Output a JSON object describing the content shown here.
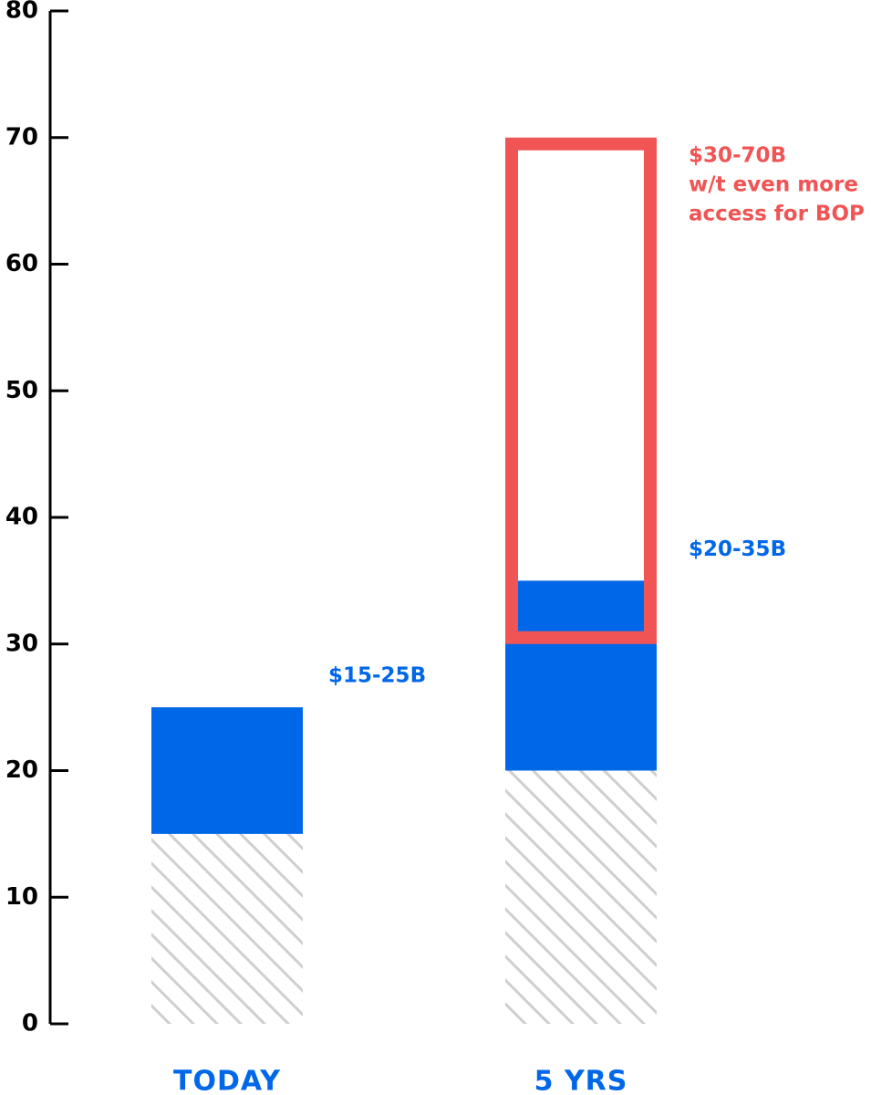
{
  "chart_data": {
    "type": "range",
    "categories": [
      "TODAY",
      "5 YRS"
    ],
    "category_color": "#0068e8",
    "base": "hatch",
    "series": [
      {
        "color": "#0068e8",
        "style": "filled",
        "low": [
          15,
          20
        ],
        "high": [
          25,
          35
        ],
        "value_labels": [
          [
            "$15-25B"
          ],
          [
            "$20-35B"
          ]
        ]
      },
      {
        "color": "#f05454",
        "style": "outline",
        "low": [
          null,
          30
        ],
        "high": [
          null,
          70
        ],
        "value_labels": [
          null,
          [
            "$30-70B",
            "w/t even more",
            "access for BOP"
          ]
        ]
      }
    ],
    "ylim": [
      0,
      80
    ],
    "yticks": [
      0,
      10,
      20,
      30,
      40,
      50,
      60,
      70,
      80
    ]
  }
}
